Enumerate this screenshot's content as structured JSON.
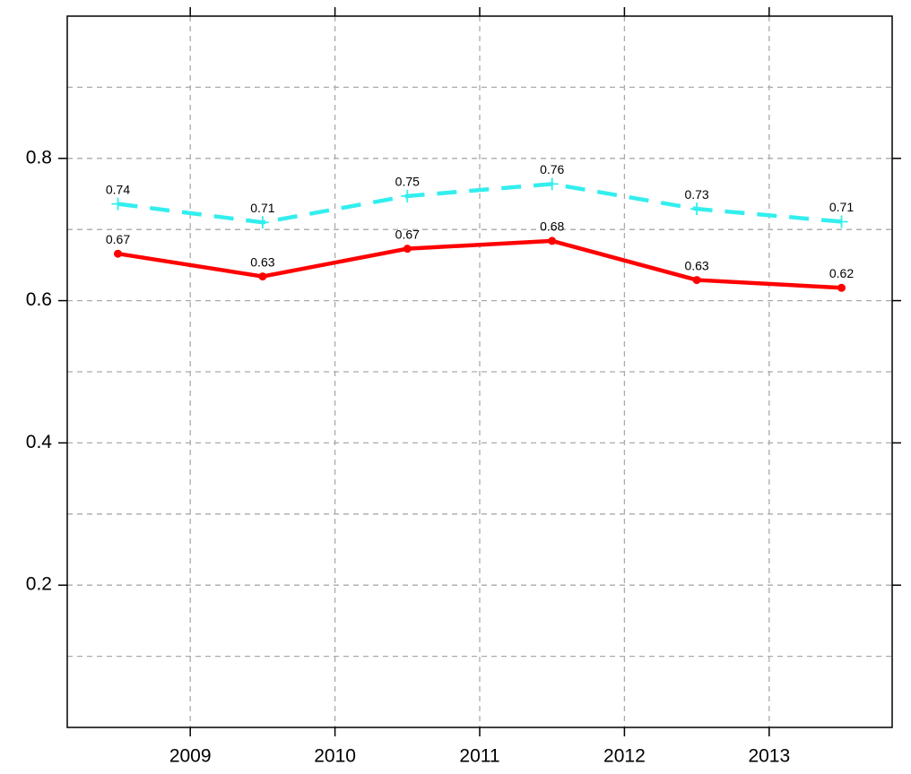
{
  "chart_data": {
    "type": "line",
    "x": [
      2008.5,
      2009.5,
      2010.5,
      2011.5,
      2012.5,
      2013.5
    ],
    "series": [
      {
        "color": "#ff0000",
        "dashed": false,
        "marker": "circle",
        "values": [
          0.666,
          0.634,
          0.673,
          0.684,
          0.629,
          0.618
        ],
        "value_labels": [
          "0.67",
          "0.63",
          "0.67",
          "0.68",
          "0.63",
          "0.62"
        ]
      },
      {
        "color": "#33eeee",
        "dashed": true,
        "marker": "plus",
        "values": [
          0.736,
          0.71,
          0.747,
          0.764,
          0.729,
          0.711
        ],
        "value_labels": [
          "0.74",
          "0.71",
          "0.75",
          "0.76",
          "0.73",
          "0.71"
        ]
      }
    ],
    "xlim": [
      2008.15,
      2013.85
    ],
    "xticks": [
      2009,
      2010,
      2011,
      2012,
      2013
    ],
    "ylim": [
      0,
      1
    ],
    "yticks": [
      0.2,
      0.4,
      0.6,
      0.8
    ],
    "ygrid": [
      0.1,
      0.2,
      0.3,
      0.4,
      0.5,
      0.6,
      0.7,
      0.8,
      0.9
    ],
    "grid": true
  }
}
